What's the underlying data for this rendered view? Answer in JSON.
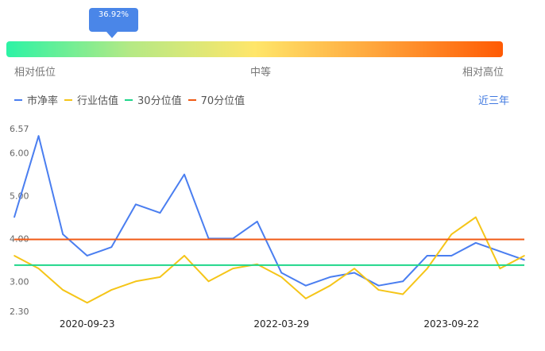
{
  "gauge": {
    "percentile_label": "36.92%",
    "percentile_value": 36.92,
    "label_low": "相对低位",
    "label_mid": "中等",
    "label_high": "相对高位"
  },
  "legend": {
    "items": [
      {
        "label": "市净率",
        "color": "#4a7ef0"
      },
      {
        "label": "行业估值",
        "color": "#f5c518"
      },
      {
        "label": "30分位值",
        "color": "#1fd68a"
      },
      {
        "label": "70分位值",
        "color": "#f05a14"
      }
    ],
    "period": "近三年"
  },
  "chart_data": {
    "type": "line",
    "x_tick_labels": [
      "2020-09-23",
      "2022-03-29",
      "2023-09-22"
    ],
    "y_tick_labels": [
      "6.57",
      "6.00",
      "5.00",
      "4.00",
      "3.00",
      "2.30"
    ],
    "ylim": [
      2.3,
      6.57
    ],
    "x": [
      "2020-04",
      "2020-06",
      "2020-08",
      "2020-09-23",
      "2020-12",
      "2021-03",
      "2021-05",
      "2021-06",
      "2021-09",
      "2021-12",
      "2022-02",
      "2022-03-29",
      "2022-05",
      "2022-07",
      "2022-09",
      "2022-12",
      "2023-03",
      "2023-06",
      "2023-09-22",
      "2023-11",
      "2024-01",
      "2024-03"
    ],
    "series": [
      {
        "name": "市净率",
        "color": "#4a7ef0",
        "values": [
          4.5,
          6.4,
          4.1,
          3.6,
          3.8,
          4.8,
          4.6,
          5.5,
          4.0,
          4.0,
          4.4,
          3.2,
          2.9,
          3.1,
          3.2,
          2.9,
          3.0,
          3.6,
          3.6,
          3.9,
          3.7,
          3.5
        ]
      },
      {
        "name": "行业估值",
        "color": "#f5c518",
        "values": [
          3.6,
          3.3,
          2.8,
          2.5,
          2.8,
          3.0,
          3.1,
          3.6,
          3.0,
          3.3,
          3.4,
          3.1,
          2.6,
          2.9,
          3.3,
          2.8,
          2.7,
          3.3,
          4.1,
          4.5,
          3.3,
          3.6
        ]
      },
      {
        "name": "30分位值",
        "color": "#1fd68a",
        "constant": 3.38
      },
      {
        "name": "70分位值",
        "color": "#f05a14",
        "constant": 3.98
      }
    ]
  }
}
